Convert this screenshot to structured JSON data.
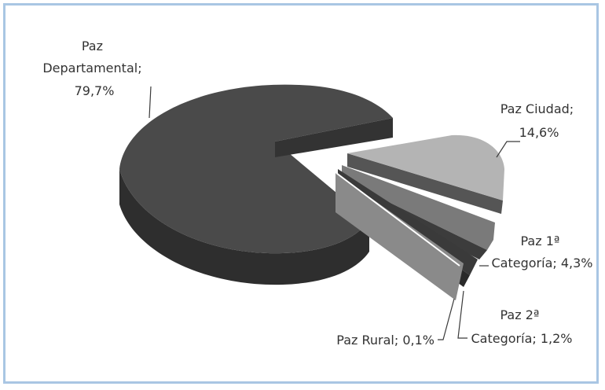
{
  "chart_data": {
    "type": "pie",
    "style": "3d-exploded",
    "title": "",
    "slices": [
      {
        "name_lines": [
          "Paz",
          "Departamental;",
          "79,7%"
        ],
        "value": 79.7,
        "color": "#4a4a4a"
      },
      {
        "name_lines": [
          "Paz Ciudad;",
          "14,6%"
        ],
        "value": 14.6,
        "color": "#b4b4b4"
      },
      {
        "name_lines": [
          "Paz 1ª",
          "Categoría; 4,3%"
        ],
        "value": 4.3,
        "color": "#7a7a7a"
      },
      {
        "name_lines": [
          "Paz 2ª",
          "Categoría; 1,2%"
        ],
        "value": 1.2,
        "color": "#3a3a3a"
      },
      {
        "name_lines": [
          "Paz Rural; 0,1%"
        ],
        "value": 0.1,
        "color": "#ffffff"
      }
    ],
    "legend": "none",
    "data_labels": "outside-with-leader-lines"
  },
  "colors": {
    "frame_border": "#a9c6e3",
    "background": "#ffffff",
    "label_text": "#333333"
  }
}
